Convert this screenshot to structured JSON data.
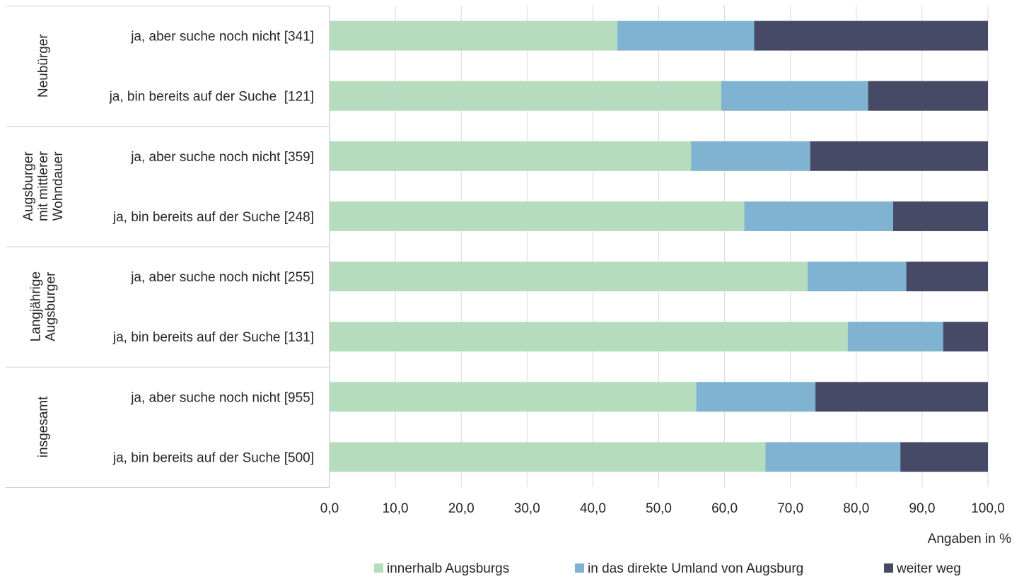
{
  "chart_data": {
    "type": "bar",
    "orientation": "horizontal",
    "stacked": true,
    "title": "",
    "xlabel": "Angaben in %",
    "ylabel": "",
    "xlim": [
      0,
      100
    ],
    "x_ticks": [
      "0,0",
      "10,0",
      "20,0",
      "30,0",
      "40,0",
      "50,0",
      "60,0",
      "70,0",
      "80,0",
      "90,0",
      "100,0"
    ],
    "grid": true,
    "legend_position": "bottom",
    "groups": [
      {
        "label": "Neubürger",
        "label_lines": [
          "Neubürger"
        ]
      },
      {
        "label": "Augsburger mit mittlerer Wohndauer",
        "label_lines": [
          "Augsburger",
          "mit mittlerer",
          "Wohndauer"
        ]
      },
      {
        "label": "Langjährige Augsburger",
        "label_lines": [
          "Langjährige",
          "Augsburger"
        ]
      },
      {
        "label": "insgesamt",
        "label_lines": [
          "insgesamt"
        ]
      }
    ],
    "categories": [
      "ja, aber suche noch nicht [341]",
      "ja, bin bereits auf der Suche  [121]",
      "ja, aber suche noch nicht [359]",
      "ja, bin bereits auf der Suche [248]",
      "ja, aber suche noch nicht [255]",
      "ja, bin bereits auf der Suche [131]",
      "ja, aber suche noch nicht [955]",
      "ja, bin bereits auf der Suche [500]"
    ],
    "series": [
      {
        "name": "innerhalb Augsburgs",
        "color": "#b5ddbd",
        "values": [
          43.7,
          59.5,
          54.9,
          63.0,
          72.6,
          78.7,
          55.7,
          66.2
        ]
      },
      {
        "name": "in das direkte Umland von Augsburg",
        "color": "#7fb3d1",
        "values": [
          20.8,
          22.3,
          18.1,
          22.6,
          15.0,
          14.5,
          18.1,
          20.5
        ]
      },
      {
        "name": "weiter weg",
        "color": "#474a66",
        "values": [
          35.5,
          18.2,
          27.0,
          14.4,
          12.4,
          6.8,
          26.2,
          13.3
        ]
      }
    ]
  }
}
